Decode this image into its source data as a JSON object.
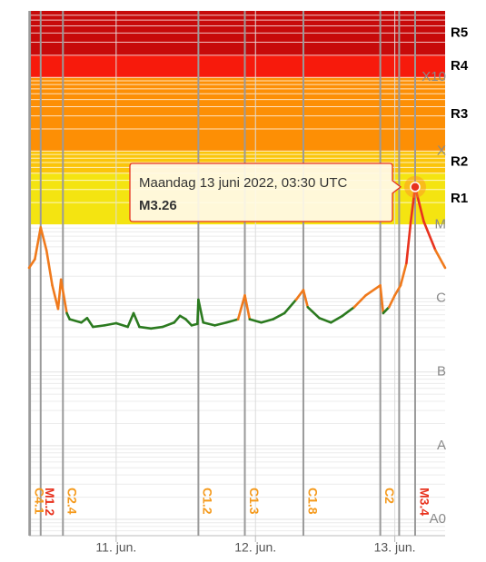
{
  "chart_data": {
    "type": "line",
    "log_scale": true,
    "grid": true,
    "xlim": [
      "2022-06-10T09:00",
      "2022-06-13T08:40"
    ],
    "xticks": [
      {
        "value": "2022-06-11T00:00",
        "label": "11. jun."
      },
      {
        "value": "2022-06-12T00:00",
        "label": "12. jun."
      },
      {
        "value": "2022-06-13T00:00",
        "label": "13. jun."
      }
    ],
    "ylim": [
      6e-10,
      0.008
    ],
    "yticks": [
      {
        "value": 1e-09,
        "label": "A0"
      },
      {
        "value": 1e-08,
        "label": "A"
      },
      {
        "value": 1e-07,
        "label": "B"
      },
      {
        "value": 1e-06,
        "label": "C"
      },
      {
        "value": 1e-05,
        "label": "M"
      },
      {
        "value": 0.0001,
        "label": "X"
      },
      {
        "value": 0.001,
        "label": "X10"
      }
    ],
    "bands": [
      {
        "from": 1e-05,
        "color": "#f4e411",
        "label": "R1"
      },
      {
        "from": 5e-05,
        "color": "#fbc50a",
        "label": "R2"
      },
      {
        "from": 0.0001,
        "color": "#fd8f05",
        "label": "R3"
      },
      {
        "from": 0.001,
        "color": "#f71a0c",
        "label": "R4"
      },
      {
        "from": 0.002,
        "color": "#c70a0a",
        "label": "R5"
      }
    ],
    "color_levels": [
      1e-06,
      1e-05
    ],
    "level_colors": [
      "#2b7a1f",
      "#f07a1c",
      "#e8321e"
    ],
    "x": [
      "2022-06-10T09:00",
      "2022-06-10T10:00",
      "2022-06-10T11:00",
      "2022-06-10T12:00",
      "2022-06-10T13:00",
      "2022-06-10T14:00",
      "2022-06-10T14:30",
      "2022-06-10T15:30",
      "2022-06-10T16:00",
      "2022-06-10T18:00",
      "2022-06-10T19:00",
      "2022-06-10T20:00",
      "2022-06-10T22:00",
      "2022-06-11T00:00",
      "2022-06-11T02:00",
      "2022-06-11T03:00",
      "2022-06-11T04:00",
      "2022-06-11T06:00",
      "2022-06-11T08:00",
      "2022-06-11T10:00",
      "2022-06-11T11:00",
      "2022-06-11T12:00",
      "2022-06-11T13:00",
      "2022-06-11T14:00",
      "2022-06-11T14:10",
      "2022-06-11T15:00",
      "2022-06-11T17:00",
      "2022-06-11T19:00",
      "2022-06-11T21:00",
      "2022-06-11T22:10",
      "2022-06-11T23:00",
      "2022-06-12T01:00",
      "2022-06-12T03:00",
      "2022-06-12T05:00",
      "2022-06-12T07:00",
      "2022-06-12T08:15",
      "2022-06-12T09:00",
      "2022-06-12T11:00",
      "2022-06-12T13:00",
      "2022-06-12T15:00",
      "2022-06-12T17:00",
      "2022-06-12T19:00",
      "2022-06-12T21:30",
      "2022-06-12T22:00",
      "2022-06-12T23:00",
      "2022-06-13T00:00",
      "2022-06-13T01:00",
      "2022-06-13T02:00",
      "2022-06-13T02:45",
      "2022-06-13T03:30",
      "2022-06-13T05:00",
      "2022-06-13T07:00",
      "2022-06-13T08:40"
    ],
    "series": [
      {
        "values": [
          2.6e-06,
          3.4e-06,
          9.2e-06,
          4.5e-06,
          1.5e-06,
          7.2e-07,
          1.8e-06,
          6.3e-07,
          5.2e-07,
          4.7e-07,
          5.4e-07,
          4.1e-07,
          4.3e-07,
          4.6e-07,
          4.1e-07,
          6.3e-07,
          4.1e-07,
          3.9e-07,
          4.1e-07,
          4.7e-07,
          5.8e-07,
          5.2e-07,
          4.3e-07,
          4.5e-07,
          9.6e-07,
          4.7e-07,
          4.3e-07,
          4.7e-07,
          5.2e-07,
          1.1e-06,
          5.2e-07,
          4.7e-07,
          5.2e-07,
          6.3e-07,
          9.6e-07,
          1.3e-06,
          7.6e-07,
          5.4e-07,
          4.7e-07,
          5.8e-07,
          7.6e-07,
          1.1e-06,
          1.5e-06,
          6.3e-07,
          7.6e-07,
          1.1e-06,
          1.5e-06,
          3e-06,
          1.1e-05,
          3.26e-05,
          1.1e-05,
          4.5e-06,
          2.6e-06
        ]
      }
    ],
    "flares": [
      {
        "x": "2022-06-10T09:10",
        "label": "C4.1",
        "color": "#f59a1c"
      },
      {
        "x": "2022-06-10T11:00",
        "label": "M1.2",
        "color": "#e8321e"
      },
      {
        "x": "2022-06-10T14:50",
        "label": "C2.4",
        "color": "#f59a1c"
      },
      {
        "x": "2022-06-11T14:10",
        "label": "C1.2",
        "color": "#f59a1c"
      },
      {
        "x": "2022-06-11T22:10",
        "label": "C1.3",
        "color": "#f59a1c"
      },
      {
        "x": "2022-06-12T08:15",
        "label": "C1.8",
        "color": "#f59a1c"
      },
      {
        "x": "2022-06-12T21:30",
        "label": "C2",
        "color": "#f59a1c"
      },
      {
        "x": "2022-06-13T00:45",
        "label": null,
        "color": "#f59a1c"
      },
      {
        "x": "2022-06-13T03:30",
        "label": "M3.4",
        "color": "#e8321e"
      }
    ],
    "tooltip": {
      "x": "2022-06-13T03:30",
      "title": "Maandag 13 juni 2022, 03:30 UTC",
      "value_label": "M3.26"
    }
  }
}
